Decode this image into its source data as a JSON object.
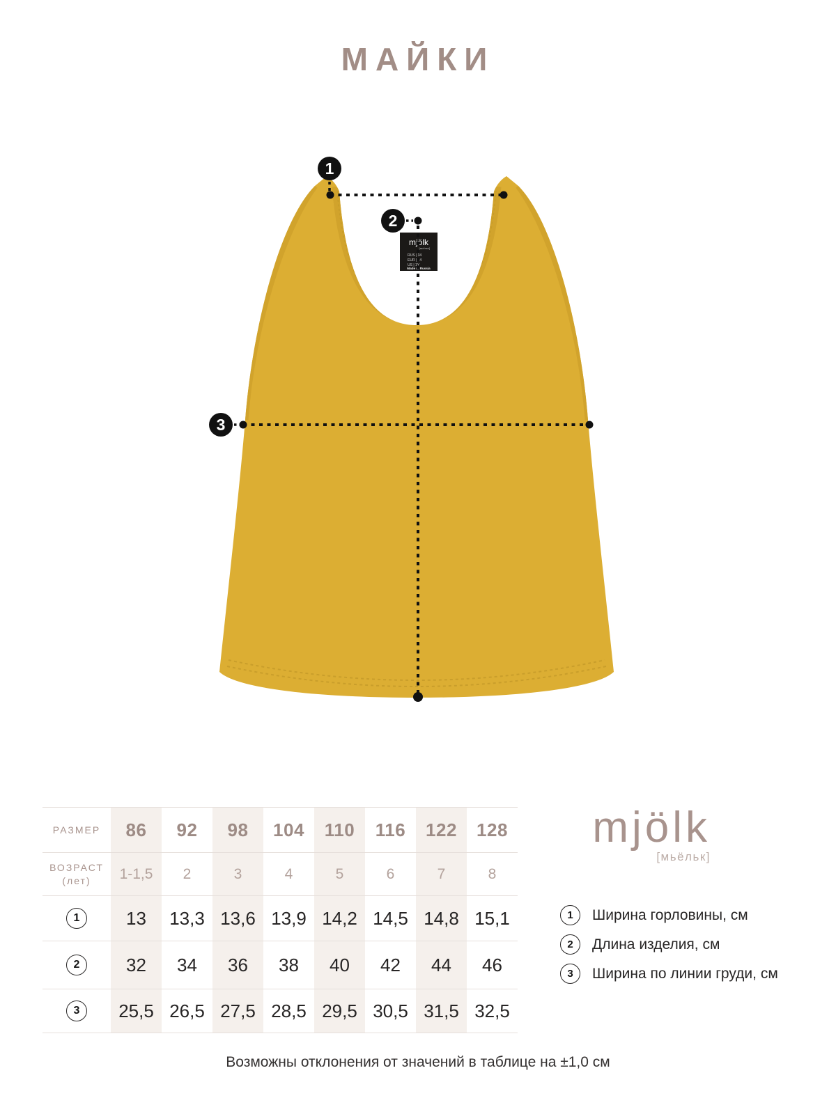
{
  "page": {
    "title": "МАЙКИ",
    "footer": "Возможны отклонения от значений в таблице на ±1,0 см"
  },
  "brand": {
    "name": "mjölk",
    "transcription": "[мьёльк]"
  },
  "diagram": {
    "shirt_color": "#dcae33",
    "markers": [
      {
        "id": "1"
      },
      {
        "id": "2"
      },
      {
        "id": "3"
      }
    ],
    "care_tag": {
      "brand": "mjölk",
      "brand_sub": "[мьёльк]",
      "size_lines": [
        "RUS | 34",
        "EUR | 34",
        "US | 1Y"
      ],
      "origin": "Made in Russia"
    }
  },
  "table": {
    "size_label": "РАЗМЕР",
    "age_label_line1": "ВОЗРАСТ",
    "age_label_line2": "(лет)",
    "sizes": [
      "86",
      "92",
      "98",
      "104",
      "110",
      "116",
      "122",
      "128"
    ],
    "ages": [
      "1-1,5",
      "2",
      "3",
      "4",
      "5",
      "6",
      "7",
      "8"
    ],
    "measurement_rows": [
      {
        "num": "1",
        "values": [
          "13",
          "13,3",
          "13,6",
          "13,9",
          "14,2",
          "14,5",
          "14,8",
          "15,1"
        ]
      },
      {
        "num": "2",
        "values": [
          "32",
          "34",
          "36",
          "38",
          "40",
          "42",
          "44",
          "46"
        ]
      },
      {
        "num": "3",
        "values": [
          "25,5",
          "26,5",
          "27,5",
          "28,5",
          "29,5",
          "30,5",
          "31,5",
          "32,5"
        ]
      }
    ]
  },
  "legend": [
    {
      "num": "1",
      "label": "Ширина горловины, см"
    },
    {
      "num": "2",
      "label": "Длина изделия, см"
    },
    {
      "num": "3",
      "label": "Ширина по линии груди, см"
    }
  ],
  "colors": {
    "accent_taupe": "#a28d86",
    "taupe_light": "#b3a29c",
    "shirt_yellow": "#dcae33",
    "shirt_trim": "#d1a32c",
    "table_shade": "#f5f0ec",
    "line_gray": "#e6dfdb",
    "annotation_black": "#111111",
    "text_dark": "#272525"
  }
}
